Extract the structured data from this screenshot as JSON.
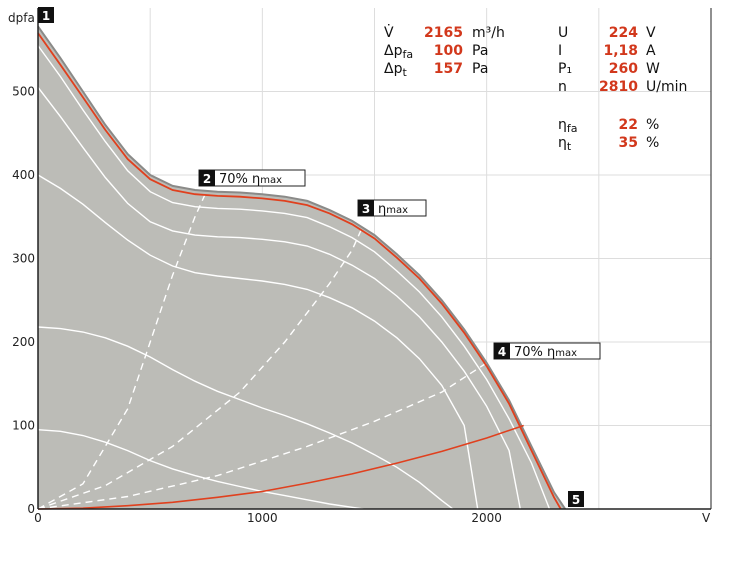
{
  "chart_data": {
    "type": "line",
    "ylabel": "dpfa",
    "xlabel": "V",
    "xlim": [
      0,
      3000
    ],
    "ylim": [
      0,
      600
    ],
    "x_ticks": [
      "0",
      "1000",
      "2000"
    ],
    "y_ticks": [
      "0",
      "100",
      "200",
      "300",
      "400",
      "500"
    ],
    "grid": true,
    "colors": {
      "envelope_fill": "#bcbcb7",
      "envelope_stroke": "#8a8a88",
      "operating_curve": "#e0401e",
      "speed_curves": "#ffffff",
      "efficiency_lines": "#ffffff"
    },
    "envelope": {
      "x": [
        0,
        100,
        200,
        300,
        400,
        500,
        600,
        700,
        800,
        900,
        1000,
        1100,
        1200,
        1300,
        1400,
        1500,
        1600,
        1700,
        1800,
        1900,
        2000,
        2100,
        2200,
        2300,
        2350
      ],
      "y": [
        578,
        540,
        500,
        460,
        425,
        400,
        387,
        382,
        380,
        379,
        377,
        374,
        369,
        358,
        345,
        328,
        305,
        280,
        250,
        215,
        175,
        130,
        75,
        20,
        0
      ]
    },
    "operating_curve": {
      "x": [
        0,
        100,
        200,
        300,
        400,
        500,
        600,
        700,
        800,
        900,
        1000,
        1100,
        1200,
        1300,
        1400,
        1500,
        1600,
        1700,
        1800,
        1900,
        2000,
        2100,
        2200,
        2300,
        2330
      ],
      "y": [
        570,
        532,
        493,
        454,
        419,
        395,
        382,
        377,
        375,
        374,
        372,
        369,
        364,
        354,
        341,
        324,
        301,
        276,
        246,
        211,
        171,
        126,
        70,
        14,
        0
      ]
    },
    "system_curve": {
      "x": [
        0,
        200,
        400,
        600,
        800,
        1000,
        1200,
        1400,
        1600,
        1800,
        2000,
        2165
      ],
      "y": [
        0,
        1,
        4,
        8,
        14,
        21,
        31,
        42,
        55,
        69,
        85,
        100
      ]
    },
    "speed_curves": [
      {
        "x": [
          0,
          100,
          200,
          300,
          400,
          500,
          600,
          700,
          800,
          900,
          1000,
          1100,
          1200,
          1300,
          1400,
          1500,
          1600,
          1700,
          1800,
          1900,
          2000,
          2100,
          2200,
          2280
        ],
        "y": [
          555,
          518,
          478,
          440,
          405,
          380,
          367,
          362,
          360,
          359,
          357,
          354,
          349,
          338,
          325,
          308,
          285,
          260,
          230,
          195,
          155,
          108,
          55,
          0
        ]
      },
      {
        "x": [
          0,
          100,
          200,
          300,
          400,
          500,
          600,
          700,
          800,
          900,
          1000,
          1100,
          1200,
          1300,
          1400,
          1500,
          1600,
          1700,
          1800,
          1900,
          2000,
          2100,
          2150
        ],
        "y": [
          505,
          470,
          433,
          397,
          366,
          344,
          333,
          328,
          326,
          325,
          323,
          320,
          315,
          305,
          292,
          276,
          255,
          230,
          200,
          165,
          123,
          70,
          0
        ]
      },
      {
        "x": [
          0,
          100,
          200,
          300,
          400,
          500,
          600,
          700,
          800,
          900,
          1000,
          1100,
          1200,
          1300,
          1400,
          1500,
          1600,
          1700,
          1800,
          1900,
          1960
        ],
        "y": [
          400,
          384,
          365,
          343,
          322,
          304,
          291,
          283,
          279,
          276,
          273,
          269,
          263,
          253,
          241,
          225,
          205,
          180,
          148,
          100,
          0
        ]
      },
      {
        "x": [
          0,
          100,
          200,
          300,
          400,
          500,
          600,
          700,
          800,
          900,
          1000,
          1100,
          1200,
          1300,
          1400,
          1500,
          1600,
          1700,
          1800,
          1850
        ],
        "y": [
          218,
          216,
          212,
          205,
          195,
          182,
          167,
          153,
          141,
          131,
          121,
          112,
          102,
          91,
          79,
          65,
          50,
          32,
          10,
          0
        ]
      },
      {
        "x": [
          0,
          100,
          200,
          300,
          400,
          500,
          600,
          700,
          800,
          900,
          1000,
          1100,
          1200,
          1300,
          1400,
          1450
        ],
        "y": [
          95,
          93,
          88,
          80,
          70,
          58,
          48,
          40,
          33,
          27,
          21,
          16,
          11,
          6,
          2,
          0
        ]
      }
    ],
    "efficiency_lines": [
      {
        "name": "70% ηmax",
        "x": [
          0,
          200,
          400,
          500,
          600,
          700,
          750
        ],
        "y": [
          0,
          30,
          120,
          200,
          280,
          350,
          380
        ]
      },
      {
        "name": "ηmax",
        "x": [
          0,
          300,
          600,
          900,
          1100,
          1300,
          1400,
          1450
        ],
        "y": [
          0,
          28,
          75,
          140,
          200,
          270,
          310,
          340
        ]
      },
      {
        "name": "70% ηmax",
        "x": [
          0,
          400,
          800,
          1200,
          1500,
          1800,
          2000,
          2080
        ],
        "y": [
          0,
          15,
          40,
          75,
          105,
          140,
          175,
          195
        ]
      }
    ],
    "markers": [
      {
        "num": "1",
        "text": ""
      },
      {
        "num": "2",
        "text": "70% ",
        "eta": "η",
        "sub": "max"
      },
      {
        "num": "3",
        "text": "",
        "eta": "η",
        "sub": "max"
      },
      {
        "num": "4",
        "text": "70% ",
        "eta": "η",
        "sub": "max"
      },
      {
        "num": "5",
        "text": ""
      }
    ]
  },
  "params_left": [
    {
      "name": "V̇",
      "sub": "",
      "value": "2165",
      "unit": "m³/h"
    },
    {
      "name": "Δp",
      "sub": "fa",
      "value": "100",
      "unit": "Pa"
    },
    {
      "name": "Δp",
      "sub": "t",
      "value": "157",
      "unit": "Pa"
    }
  ],
  "params_right": [
    {
      "name": "U",
      "sub": "",
      "value": "224",
      "unit": "V"
    },
    {
      "name": "I",
      "sub": "",
      "value": "1,18",
      "unit": "A"
    },
    {
      "name": "P₁",
      "sub": "",
      "value": "260",
      "unit": "W"
    },
    {
      "name": "n",
      "sub": "",
      "value": "2810",
      "unit": "U/min"
    },
    {
      "name": "η",
      "sub": "fa",
      "value": "22",
      "unit": "%"
    },
    {
      "name": "η",
      "sub": "t",
      "value": "35",
      "unit": "%"
    }
  ]
}
